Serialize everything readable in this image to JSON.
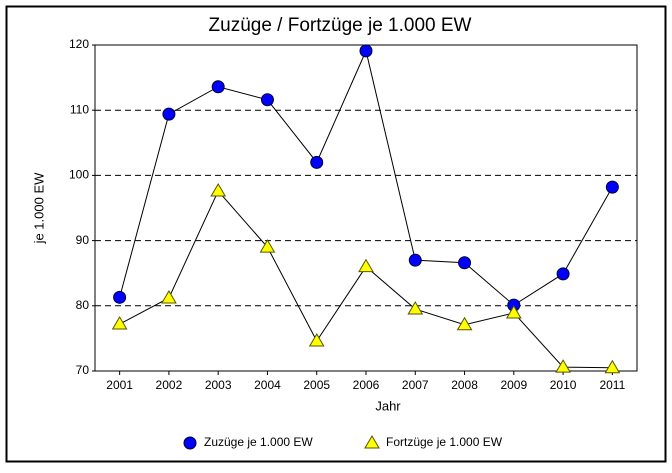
{
  "chart_data": {
    "type": "line",
    "title": "Zuzüge / Fortzüge je 1.000 EW",
    "x_label": "Jahr",
    "y_label": "je 1.000 EW",
    "categories": [
      "2001",
      "2002",
      "2003",
      "2004",
      "2005",
      "2006",
      "2007",
      "2008",
      "2009",
      "2010",
      "2011"
    ],
    "series": [
      {
        "name": "Zuzüge je 1.000 EW",
        "color": "#0000ff",
        "marker": "circle",
        "values": [
          81.3,
          109.4,
          113.6,
          111.6,
          102.0,
          119.1,
          87.0,
          86.6,
          80.1,
          84.9,
          98.2
        ]
      },
      {
        "name": "Fortzüge je 1.000 EW",
        "color": "#ffff00",
        "marker": "triangle",
        "values": [
          77.2,
          81.2,
          97.6,
          89.0,
          74.6,
          86.0,
          79.5,
          77.1,
          78.9,
          70.6,
          70.5
        ]
      }
    ],
    "ylim": [
      70,
      120
    ],
    "yticks": [
      70,
      80,
      90,
      100,
      110,
      120
    ],
    "grid": true,
    "legend": "bottom"
  }
}
